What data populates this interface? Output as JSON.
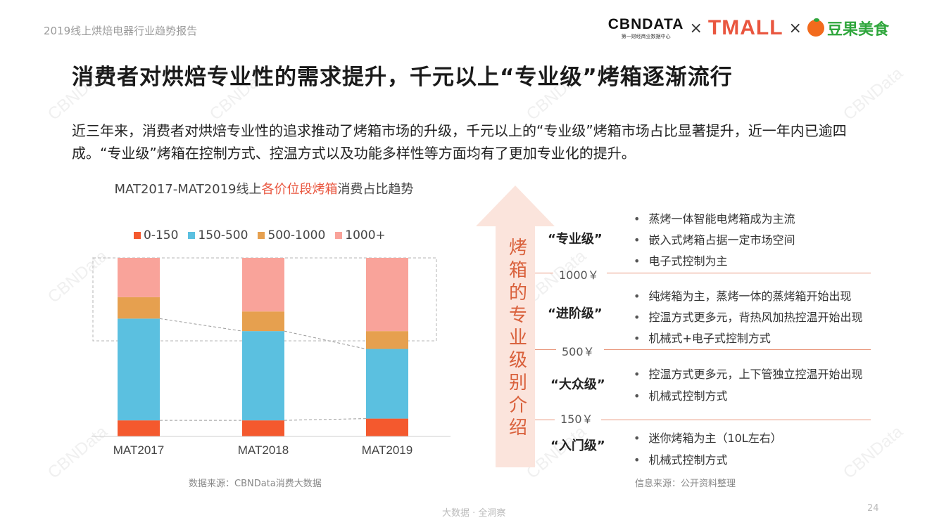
{
  "header": {
    "report_name": "2019线上烘焙电器行业趋势报告",
    "logo_cbn": "CBNDATA",
    "logo_cbn_sub": "第一财经商业数据中心",
    "logo_sep": "×",
    "logo_tmall": "TMALL",
    "logo_douguo": "豆果美食"
  },
  "title": "消费者对烘焙专业性的需求提升，千元以上“专业级”烤箱逐渐流行",
  "description": "近三年来，消费者对烘焙专业性的追求推动了烤箱市场的升级，千元以上的“专业级”烤箱市场占比显著提升，近一年内已逾四成。“专业级”烤箱在控制方式、控温方式以及功能多样性等方面均有了更加专业化的提升。",
  "chart_title": {
    "prefix": "MAT2017-MAT2019线上",
    "highlight": "各价位段烤箱",
    "suffix": "消费占比趋势"
  },
  "chart_data": {
    "type": "bar",
    "stacked": true,
    "categories": [
      "MAT2017",
      "MAT2018",
      "MAT2019"
    ],
    "series": [
      {
        "name": "0-150",
        "color": "#f4592e",
        "values": [
          9,
          9,
          10
        ]
      },
      {
        "name": "150-500",
        "color": "#5bc0e0",
        "values": [
          57,
          50,
          39
        ]
      },
      {
        "name": "500-1000",
        "color": "#e6a04f",
        "values": [
          12,
          11,
          10
        ]
      },
      {
        "name": "1000+",
        "color": "#f9a39a",
        "values": [
          22,
          30,
          41
        ]
      }
    ],
    "ylim": [
      0,
      100
    ],
    "legend": "top",
    "grid": false
  },
  "source_left": "数据来源：CBNData消费大数据",
  "arrow_label": "烤箱的专业级别介绍",
  "levels": [
    {
      "name": "“专业级”",
      "bullets": [
        "蒸烤一体智能电烤箱成为主流",
        "嵌入式烤箱占据一定市场空间",
        "电子式控制为主"
      ]
    },
    {
      "name": "“进阶级”",
      "bullets": [
        "纯烤箱为主，蒸烤一体的蒸烤箱开始出现",
        "控温方式更多元，背热风加热控温开始出现",
        "机械式+电子式控制方式"
      ]
    },
    {
      "name": "“大众级”",
      "bullets": [
        "控温方式更多元，上下管独立控温开始出现",
        "机械式控制方式"
      ]
    },
    {
      "name": "“入门级”",
      "bullets": [
        "迷你烤箱为主（10L左右）",
        "机械式控制方式"
      ]
    }
  ],
  "price_ticks": [
    "1000￥",
    "500￥",
    "150￥"
  ],
  "source_right": "信息来源：公开资料整理",
  "footer": "大数据 · 全洞察",
  "page_number": "24",
  "watermark": "CBNData"
}
